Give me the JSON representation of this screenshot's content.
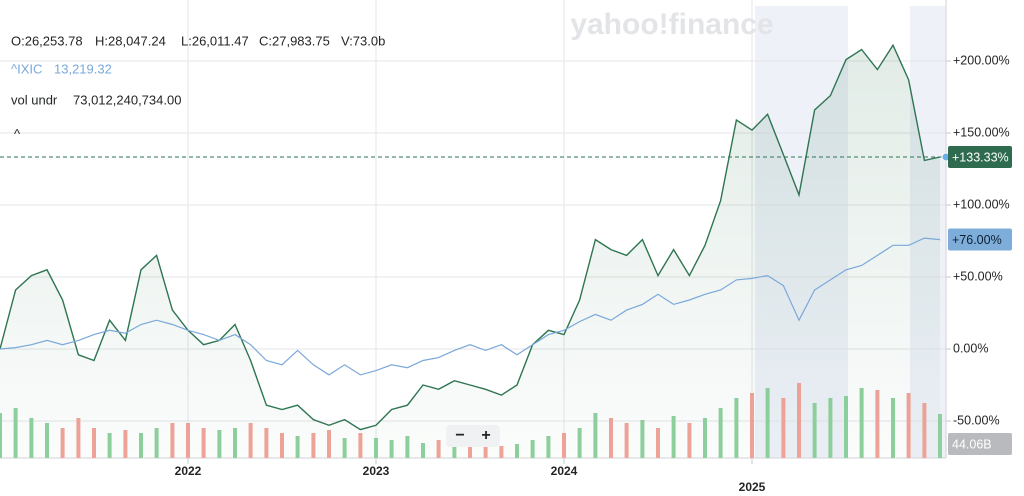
{
  "chart_data": {
    "type": "line",
    "watermark": "yahoo!finance",
    "header": {
      "ohlcv": [
        "O:26,253.78",
        "H:28,047.24",
        "L:26,011.47",
        "C:27,983.75",
        "V:73.0b"
      ],
      "compare_name": "^IXIC",
      "compare_value": "13,219.32",
      "volume_label": "vol undr",
      "volume_value": "73,012,240,734.00",
      "collapse": "^"
    },
    "zoom_out": "−",
    "zoom_in": "+",
    "x": [
      2021,
      2021.083,
      2021.167,
      2021.25,
      2021.333,
      2021.417,
      2021.5,
      2021.583,
      2021.667,
      2021.75,
      2021.833,
      2021.917,
      2022,
      2022.083,
      2022.167,
      2022.25,
      2022.333,
      2022.417,
      2022.5,
      2022.583,
      2022.667,
      2022.75,
      2022.833,
      2022.917,
      2023,
      2023.083,
      2023.167,
      2023.25,
      2023.333,
      2023.417,
      2023.5,
      2023.583,
      2023.667,
      2023.75,
      2023.833,
      2023.917,
      2024,
      2024.083,
      2024.167,
      2024.25,
      2024.333,
      2024.417,
      2024.5,
      2024.583,
      2024.667,
      2024.75,
      2024.833,
      2024.917,
      2025,
      2025.083,
      2025.167,
      2025.25,
      2025.333,
      2025.417,
      2025.5,
      2025.583,
      2025.667,
      2025.75,
      2025.833,
      2025.917,
      2026
    ],
    "series": [
      {
        "color": "#2e7551",
        "values": [
          0,
          41,
          51,
          55,
          34,
          -4,
          -8,
          20,
          6,
          55,
          65,
          27,
          13,
          3,
          6,
          17,
          -8,
          -39,
          -42,
          -39,
          -49,
          -53,
          -49,
          -56,
          -53,
          -42,
          -39,
          -25,
          -28,
          -22,
          -25,
          -28,
          -32,
          -25,
          3,
          13,
          10,
          34,
          76,
          69,
          65,
          76,
          51,
          69,
          51,
          72,
          103,
          159,
          152,
          163,
          135,
          107,
          166,
          176,
          201,
          208,
          194,
          211,
          187,
          131,
          133.33
        ],
        "value_labels": {
          "60": "+133.33%"
        }
      },
      {
        "name": "^IXIC",
        "color": "#7aa8da",
        "values": [
          0,
          1,
          3,
          6,
          3,
          6,
          10,
          13,
          11,
          17,
          20,
          17,
          13,
          10,
          6,
          10,
          3,
          -8,
          -11,
          -1,
          -11,
          -18,
          -11,
          -18,
          -15,
          -11,
          -13,
          -8,
          -6,
          -1,
          3,
          -1,
          3,
          -4,
          3,
          10,
          13,
          19,
          24,
          20,
          27,
          31,
          38,
          31,
          34,
          38,
          41,
          48,
          49,
          51,
          44,
          20,
          41,
          48,
          55,
          58,
          65,
          72,
          72,
          77,
          76
        ],
        "value_labels": {
          "60": "+76.00%"
        }
      }
    ],
    "volume": {
      "values": [
        45,
        50,
        40,
        35,
        30,
        40,
        30,
        25,
        28,
        25,
        30,
        35,
        35,
        30,
        28,
        30,
        35,
        30,
        25,
        22,
        25,
        28,
        20,
        25,
        20,
        18,
        22,
        15,
        18,
        15,
        14,
        15,
        12,
        14,
        18,
        22,
        25,
        30,
        45,
        40,
        35,
        38,
        30,
        42,
        35,
        40,
        50,
        60,
        65,
        70,
        60,
        75,
        55,
        60,
        62,
        70,
        68,
        60,
        65,
        55,
        44.06
      ],
      "value_labels": {
        "60": "44.06B"
      },
      "ylim": [
        0,
        100
      ],
      "up_color": "#8fd19e",
      "down_color": "#f2a39a"
    },
    "xlim": [
      2021,
      2026
    ],
    "xticks": [
      2022,
      2023,
      2024,
      2025
    ],
    "ylim": [
      -75,
      240
    ],
    "yticks": [
      {
        "value": 200,
        "label": "+200.00%"
      },
      {
        "value": 150,
        "label": "+150.00%"
      },
      {
        "value": 100,
        "label": "+100.00%"
      },
      {
        "value": 50,
        "label": "+50.00%"
      },
      {
        "value": 0,
        "label": "0.00%"
      },
      {
        "value": -50,
        "label": "-50.00%"
      }
    ],
    "grid": true
  }
}
